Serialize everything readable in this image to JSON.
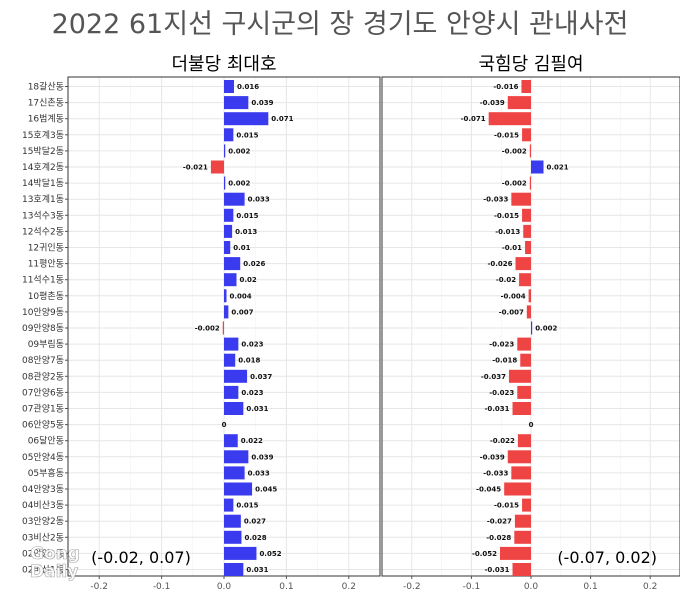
{
  "title": "2022 61지선 구시군의 장 경기도 안양시 관내사전",
  "watermark": [
    "Gong",
    "Daily"
  ],
  "colors": {
    "positive": "#3a3aef",
    "negative": "#ef4444",
    "grid": "#e6e6e6",
    "frame": "#333333"
  },
  "chart_data": [
    {
      "type": "bar",
      "orientation": "horizontal",
      "title": "더불당 최대호",
      "range_label": "(-0.02, 0.07)",
      "xlim": [
        -0.25,
        0.25
      ],
      "xticks": [
        -0.2,
        -0.1,
        0.0,
        0.1,
        0.2
      ],
      "xtick_labels": [
        "-0.2",
        "-0.1",
        "0.0",
        "0.1",
        "0.2"
      ],
      "grid": true,
      "categories": [
        "18갈산동",
        "17신촌동",
        "16범계동",
        "15호계3동",
        "15박달2동",
        "14호계2동",
        "14박달1동",
        "13호계1동",
        "13석수3동",
        "12석수2동",
        "12귀인동",
        "11평안동",
        "11석수1동",
        "10평촌동",
        "10안양9동",
        "09안양8동",
        "09부림동",
        "08안양7동",
        "08관양2동",
        "07안양6동",
        "07관양1동",
        "06안양5동",
        "06달안동",
        "05안양4동",
        "05부흥동",
        "04안양3동",
        "04비산3동",
        "03안양2동",
        "03비산2동",
        "02안양1동",
        "02비산1동"
      ],
      "values": [
        0.016,
        0.039,
        0.071,
        0.015,
        0.002,
        -0.021,
        0.002,
        0.033,
        0.015,
        0.013,
        0.01,
        0.026,
        0.02,
        0.004,
        0.007,
        -0.002,
        0.023,
        0.018,
        0.037,
        0.023,
        0.031,
        0,
        0.022,
        0.039,
        0.033,
        0.045,
        0.015,
        0.027,
        0.028,
        0.052,
        0.031
      ],
      "value_labels": [
        "0.016",
        "0.039",
        "0.071",
        "0.015",
        "0.002",
        "-0.021",
        "0.002",
        "0.033",
        "0.015",
        "0.013",
        "0.01",
        "0.026",
        "0.02",
        "0.004",
        "0.007",
        "-0.002",
        "0.023",
        "0.018",
        "0.037",
        "0.023",
        "0.031",
        "0",
        "0.022",
        "0.039",
        "0.033",
        "0.045",
        "0.015",
        "0.027",
        "0.028",
        "0.052",
        "0.031"
      ]
    },
    {
      "type": "bar",
      "orientation": "horizontal",
      "title": "국힘당 김필여",
      "range_label": "(-0.07, 0.02)",
      "xlim": [
        -0.25,
        0.25
      ],
      "xticks": [
        -0.2,
        -0.1,
        0.0,
        0.1,
        0.2
      ],
      "xtick_labels": [
        "-0.2",
        "-0.1",
        "0.0",
        "0.1",
        "0.2"
      ],
      "grid": true,
      "categories": [
        "18갈산동",
        "17신촌동",
        "16범계동",
        "15호계3동",
        "15박달2동",
        "14호계2동",
        "14박달1동",
        "13호계1동",
        "13석수3동",
        "12석수2동",
        "12귀인동",
        "11평안동",
        "11석수1동",
        "10평촌동",
        "10안양9동",
        "09안양8동",
        "09부림동",
        "08안양7동",
        "08관양2동",
        "07안양6동",
        "07관양1동",
        "06안양5동",
        "06달안동",
        "05안양4동",
        "05부흥동",
        "04안양3동",
        "04비산3동",
        "03안양2동",
        "03비산2동",
        "02안양1동",
        "02비산1동"
      ],
      "values": [
        -0.016,
        -0.039,
        -0.071,
        -0.015,
        -0.002,
        0.021,
        -0.002,
        -0.033,
        -0.015,
        -0.013,
        -0.01,
        -0.026,
        -0.02,
        -0.004,
        -0.007,
        0.002,
        -0.023,
        -0.018,
        -0.037,
        -0.023,
        -0.031,
        0,
        -0.022,
        -0.039,
        -0.033,
        -0.045,
        -0.015,
        -0.027,
        -0.028,
        -0.052,
        -0.031
      ],
      "value_labels": [
        "-0.016",
        "-0.039",
        "-0.071",
        "-0.015",
        "-0.002",
        "0.021",
        "-0.002",
        "-0.033",
        "-0.015",
        "-0.013",
        "-0.01",
        "-0.026",
        "-0.02",
        "-0.004",
        "-0.007",
        "0.002",
        "-0.023",
        "-0.018",
        "-0.037",
        "-0.023",
        "-0.031",
        "0",
        "-0.022",
        "-0.039",
        "-0.033",
        "-0.045",
        "-0.015",
        "-0.027",
        "-0.028",
        "-0.052",
        "-0.031"
      ]
    }
  ]
}
